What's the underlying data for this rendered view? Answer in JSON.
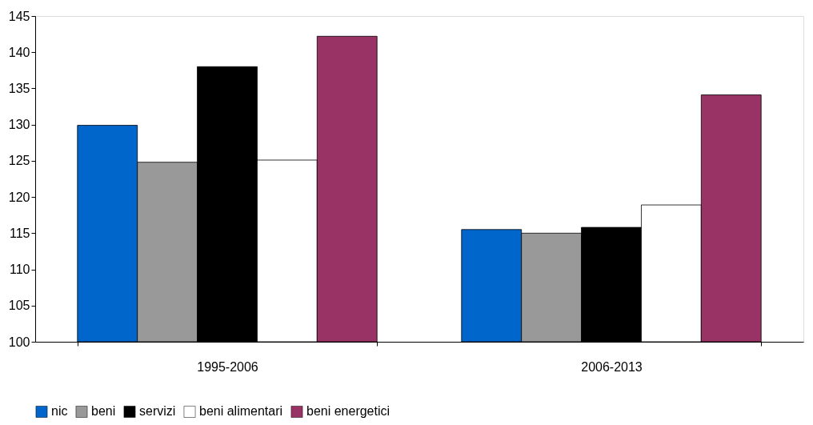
{
  "chart_data": {
    "type": "bar",
    "categories": [
      "1995-2006",
      "2006-2013"
    ],
    "series": [
      {
        "name": "nic",
        "color": "#0066cc",
        "values": [
          129.9,
          115.5
        ]
      },
      {
        "name": "beni",
        "color": "#999999",
        "values": [
          124.8,
          115.0
        ]
      },
      {
        "name": "servizi",
        "color": "#000000",
        "values": [
          138.0,
          115.8
        ]
      },
      {
        "name": "beni alimentari",
        "color": "#ffffff",
        "values": [
          125.1,
          118.9
        ]
      },
      {
        "name": "beni energetici",
        "color": "#993366",
        "values": [
          142.2,
          134.1
        ]
      }
    ],
    "ylim": [
      100,
      145
    ],
    "yticks": [
      100,
      105,
      110,
      115,
      120,
      125,
      130,
      135,
      140,
      145
    ],
    "grid": false,
    "legend": "bottom"
  }
}
